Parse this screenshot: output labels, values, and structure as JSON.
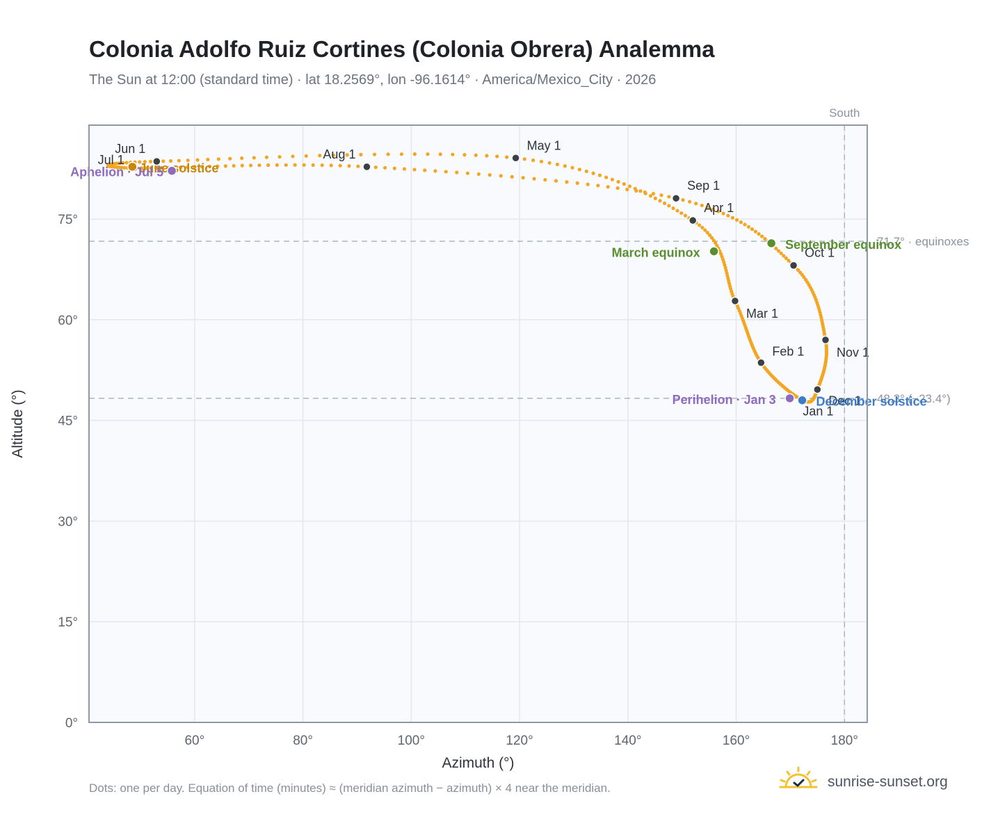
{
  "title": "Colonia Adolfo Ruiz Cortines (Colonia Obrera) Analemma",
  "subtitle": "The Sun at 12:00 (standard time) · lat 18.2569°, lon -96.1614° · America/Mexico_City · 2026",
  "footnote": "Dots: one per day. Equation of time (minutes) ≈ (meridian azimuth − azimuth) × 4 near the meridian.",
  "brand": {
    "name": "sunrise-sunset.org",
    "icon": "sun-check-icon"
  },
  "chart_data": {
    "type": "scatter",
    "xlabel": "Azimuth (°)",
    "ylabel": "Altitude (°)",
    "xlim": [
      40.5,
      184.2
    ],
    "ylim": [
      0,
      89
    ],
    "x_ticks": [
      60,
      80,
      100,
      120,
      140,
      160,
      180
    ],
    "x_tick_labels": [
      "60°",
      "80°",
      "100°",
      "120°",
      "140°",
      "160°",
      "180°"
    ],
    "y_ticks": [
      0,
      15,
      30,
      45,
      60,
      75
    ],
    "y_tick_labels": [
      "0°",
      "15°",
      "30°",
      "45°",
      "60°",
      "75°"
    ],
    "grid": true,
    "reference_lines": [
      {
        "orientation": "vertical",
        "value": 180,
        "label": "South"
      },
      {
        "orientation": "horizontal",
        "value": 71.7,
        "label": "71.7° · equinoxes"
      },
      {
        "orientation": "horizontal",
        "value": 48.3,
        "label": "48.3° (−23.4°)"
      }
    ],
    "month_markers": [
      {
        "label": "Jan 1",
        "az": 172.3,
        "alt": 48.0
      },
      {
        "label": "Feb 1",
        "az": 164.6,
        "alt": 53.6
      },
      {
        "label": "Mar 1",
        "az": 159.8,
        "alt": 62.8
      },
      {
        "label": "Apr 1",
        "az": 152.0,
        "alt": 74.8
      },
      {
        "label": "May 1",
        "az": 119.3,
        "alt": 84.1
      },
      {
        "label": "Jun 1",
        "az": 53.0,
        "alt": 83.6
      },
      {
        "label": "Jul 1",
        "az": 48.8,
        "alt": 82.6
      },
      {
        "label": "Aug 1",
        "az": 91.8,
        "alt": 82.8
      },
      {
        "label": "Sep 1",
        "az": 148.9,
        "alt": 78.1
      },
      {
        "label": "Oct 1",
        "az": 170.6,
        "alt": 68.1
      },
      {
        "label": "Nov 1",
        "az": 176.5,
        "alt": 57.0
      },
      {
        "label": "Dec 1",
        "az": 175.0,
        "alt": 49.6
      }
    ],
    "events": [
      {
        "label": "March equinox",
        "az": 155.9,
        "alt": 70.2,
        "color": "#5a8f2f"
      },
      {
        "label": "June solstice",
        "az": 48.5,
        "alt": 82.8,
        "color": "#c8860a"
      },
      {
        "label": "September equinox",
        "az": 166.5,
        "alt": 71.4,
        "color": "#5a8f2f"
      },
      {
        "label": "December solstice",
        "az": 172.2,
        "alt": 48.0,
        "color": "#3d7cc9"
      },
      {
        "label": "Perihelion · Jan 3",
        "az": 169.9,
        "alt": 48.3,
        "color": "#8e6bbf"
      },
      {
        "label": "Aphelion · Jul 5",
        "az": 55.8,
        "alt": 82.2,
        "color": "#8e6bbf"
      }
    ],
    "curve_color": "#f2a623",
    "marker_color": "#3b3f46"
  }
}
